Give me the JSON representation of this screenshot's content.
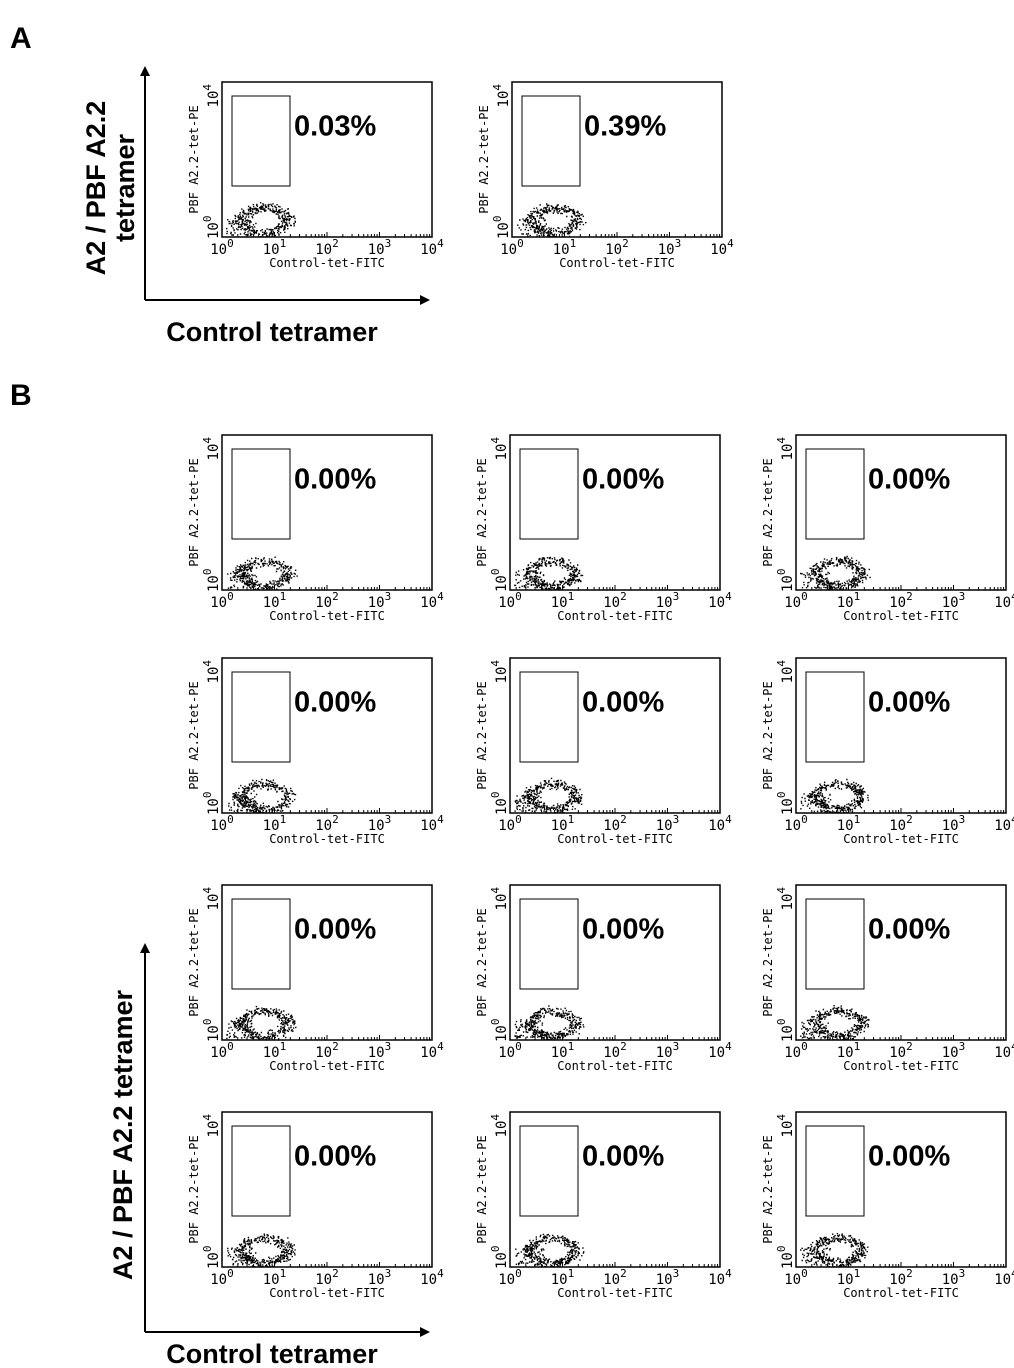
{
  "panel_a": {
    "label": "A",
    "y_axis_title_lines": [
      "A2 / PBF A2.2",
      "tetramer"
    ],
    "x_axis_title": "Control tetramer",
    "plots": [
      {
        "percent": "0.03%"
      },
      {
        "percent": "0.39%"
      }
    ]
  },
  "panel_b": {
    "label": "B",
    "y_axis_title": "A2 / PBF A2.2 tetramer",
    "x_axis_title": "Control tetramer",
    "plots": [
      {
        "percent": "0.00%"
      },
      {
        "percent": "0.00%"
      },
      {
        "percent": "0.00%"
      },
      {
        "percent": "0.00%"
      },
      {
        "percent": "0.00%"
      },
      {
        "percent": "0.00%"
      },
      {
        "percent": "0.00%"
      },
      {
        "percent": "0.00%"
      },
      {
        "percent": "0.00%"
      },
      {
        "percent": "0.00%"
      },
      {
        "percent": "0.00%"
      },
      {
        "percent": "0.00%"
      }
    ]
  },
  "plot_axes": {
    "x_label": "Control-tet-FITC",
    "y_label": "PBF A2.2-tet-PE",
    "x_ticks": [
      {
        "base": "10",
        "exp": "0"
      },
      {
        "base": "10",
        "exp": "1"
      },
      {
        "base": "10",
        "exp": "2"
      },
      {
        "base": "10",
        "exp": "3"
      },
      {
        "base": "10",
        "exp": "4"
      }
    ],
    "y_ticks": [
      {
        "base": "10",
        "exp": "0"
      },
      {
        "base": "10",
        "exp": "4"
      }
    ]
  }
}
